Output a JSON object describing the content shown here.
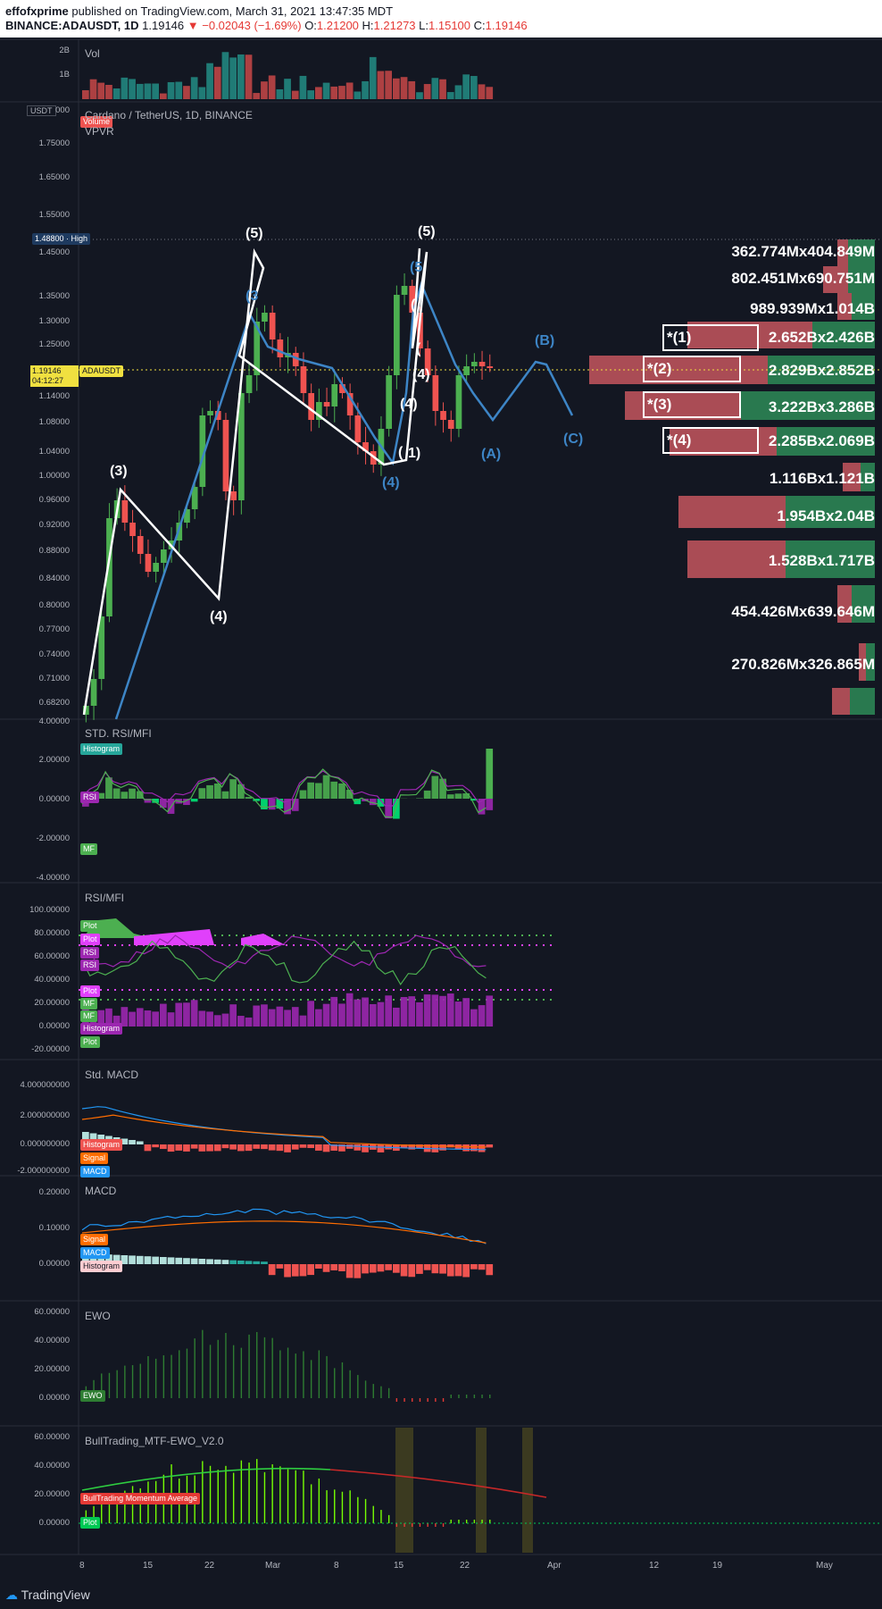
{
  "header": {
    "author": "effofxprime",
    "published": "published on TradingView.com, March 31, 2021 13:47:35 MDT",
    "symbol": "BINANCE:ADAUSDT, 1D",
    "price": "1.19146",
    "change": "−0.02043 (−1.69%)",
    "o_label": "O:",
    "o": "1.21200",
    "h_label": "H:",
    "h": "1.21273",
    "l_label": "L:",
    "l": "1.15100",
    "c_label": "C:",
    "c": "1.19146"
  },
  "volume_pane": {
    "title": "Vol",
    "tag": "Volume",
    "ticks": [
      "2B",
      "1B"
    ]
  },
  "main_pane": {
    "title": "Cardano / TetherUS, 1D, BINANCE",
    "indicator": "VPVR",
    "currency": "USDT",
    "top_tick": "000",
    "high_label": "1.48800 · High",
    "price_label": "1.19146",
    "countdown": "04:12:27",
    "symbol_tag": "ADAUSDT",
    "ticks": [
      "1.75000",
      "1.65000",
      "1.55000",
      "1.45000",
      "1.35000",
      "1.30000",
      "1.25000",
      "1.14000",
      "1.08000",
      "1.04000",
      "1.00000",
      "0.96000",
      "0.92000",
      "0.88000",
      "0.84000",
      "0.80000",
      "0.77000",
      "0.74000",
      "0.71000",
      "0.68200",
      "4.00000"
    ],
    "vp_labels": [
      "362.774Mx404.849M",
      "802.451Mx690.751M",
      "989.939Mx1.014B",
      "2.652Bx2.426B",
      "2.829Bx2.852B",
      "3.222Bx3.286B",
      "2.285Bx2.069B",
      "1.116Bx1.121B",
      "1.954Bx2.04B",
      "1.528Bx1.717B",
      "454.426Mx639.646M",
      "270.826Mx326.865M"
    ],
    "boxes": [
      "*(1)",
      "*(2)",
      "*(3)",
      "*(4)"
    ],
    "waves_white": [
      "(3)",
      "(4)",
      "(5)",
      "(5)",
      "(4)",
      "(4)",
      "(",
      "(",
      "(",
      "1)"
    ],
    "waves_blue": [
      "(3",
      "(5",
      "(4)",
      "(A)",
      "(B)",
      "(C)"
    ]
  },
  "std_rsi_pane": {
    "title": "STD. RSI/MFI",
    "tags": [
      "Histogram",
      "RSI",
      "MF"
    ],
    "ticks": [
      "2.00000",
      "0.00000",
      "-2.00000",
      "-4.00000"
    ]
  },
  "rsi_mfi_pane": {
    "title": "RSI/MFI",
    "tags": [
      "Plot",
      "Plot",
      "RSI",
      "RSI",
      "Plot",
      "MF",
      "MF",
      "Histogram",
      "Plot"
    ],
    "ticks": [
      "100.00000",
      "80.00000",
      "60.00000",
      "40.00000",
      "20.00000",
      "0.00000",
      "-20.00000"
    ]
  },
  "std_macd_pane": {
    "title": "Std. MACD",
    "tags": [
      "Histogram",
      "Signal",
      "MACD"
    ],
    "ticks": [
      "4.000000000",
      "2.000000000",
      "0.000000000",
      "-2.000000000"
    ]
  },
  "macd_pane": {
    "title": "MACD",
    "tags": [
      "Signal",
      "MACD",
      "Histogram"
    ],
    "ticks": [
      "0.20000",
      "0.10000",
      "0.00000"
    ]
  },
  "ewo_pane": {
    "title": "EWO",
    "tags": [
      "EWO"
    ],
    "ticks": [
      "60.00000",
      "40.00000",
      "20.00000",
      "0.00000"
    ]
  },
  "bt_pane": {
    "title": "BullTrading_MTF-EWO_V2.0",
    "tags": [
      "BullTrading Momentum Average",
      "Plot"
    ],
    "ticks": [
      "60.00000",
      "40.00000",
      "20.00000",
      "0.00000"
    ]
  },
  "x_axis": [
    "8",
    "15",
    "22",
    "Mar",
    "8",
    "15",
    "22",
    "Apr",
    "12",
    "19",
    "May"
  ],
  "footer": {
    "brand": "TradingView"
  },
  "colors": {
    "up": "#26a69a",
    "down": "#ef5350",
    "candle_up": "#4caf50",
    "candle_down": "#ef5350",
    "wave_blue": "#3d85c6",
    "rsi": "#9c27b0",
    "mf": "#4caf50",
    "macd": "#2196f3",
    "signal": "#ff6d00",
    "ewo": "#2e7d32",
    "vp_down": "#c5565e",
    "vp_up": "#2e8b57"
  }
}
